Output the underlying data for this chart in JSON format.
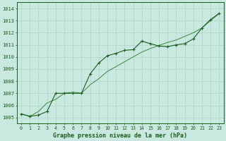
{
  "title": "Graphe pression niveau de la mer (hPa)",
  "bg_color": "#c8e8e0",
  "grid_color": "#b0d8cc",
  "line_color_main": "#1a5e1a",
  "line_color_trend": "#3a8a3a",
  "x_data": [
    0,
    1,
    2,
    3,
    4,
    5,
    6,
    7,
    8,
    9,
    10,
    11,
    12,
    13,
    14,
    15,
    16,
    17,
    18,
    19,
    20,
    21,
    22,
    23
  ],
  "y_main": [
    1005.3,
    1005.1,
    1005.2,
    1005.5,
    1007.0,
    1007.0,
    1007.0,
    1007.0,
    1008.6,
    1009.5,
    1010.1,
    1010.3,
    1010.55,
    1010.6,
    1011.3,
    1011.1,
    1010.9,
    1010.85,
    1011.0,
    1011.1,
    1011.5,
    1012.4,
    1013.1,
    1013.6
  ],
  "y_trend": [
    1005.3,
    1005.1,
    1005.5,
    1006.2,
    1006.5,
    1007.0,
    1007.1,
    1007.0,
    1007.7,
    1008.2,
    1008.8,
    1009.2,
    1009.6,
    1010.0,
    1010.4,
    1010.7,
    1010.95,
    1011.2,
    1011.4,
    1011.7,
    1012.0,
    1012.4,
    1013.0,
    1013.6
  ],
  "ylim": [
    1004.5,
    1014.5
  ],
  "yticks": [
    1005,
    1006,
    1007,
    1008,
    1009,
    1010,
    1011,
    1012,
    1013,
    1014
  ],
  "xlim": [
    -0.5,
    23.5
  ],
  "xticks": [
    0,
    1,
    2,
    3,
    4,
    5,
    6,
    7,
    8,
    9,
    10,
    11,
    12,
    13,
    14,
    15,
    16,
    17,
    18,
    19,
    20,
    21,
    22,
    23
  ]
}
